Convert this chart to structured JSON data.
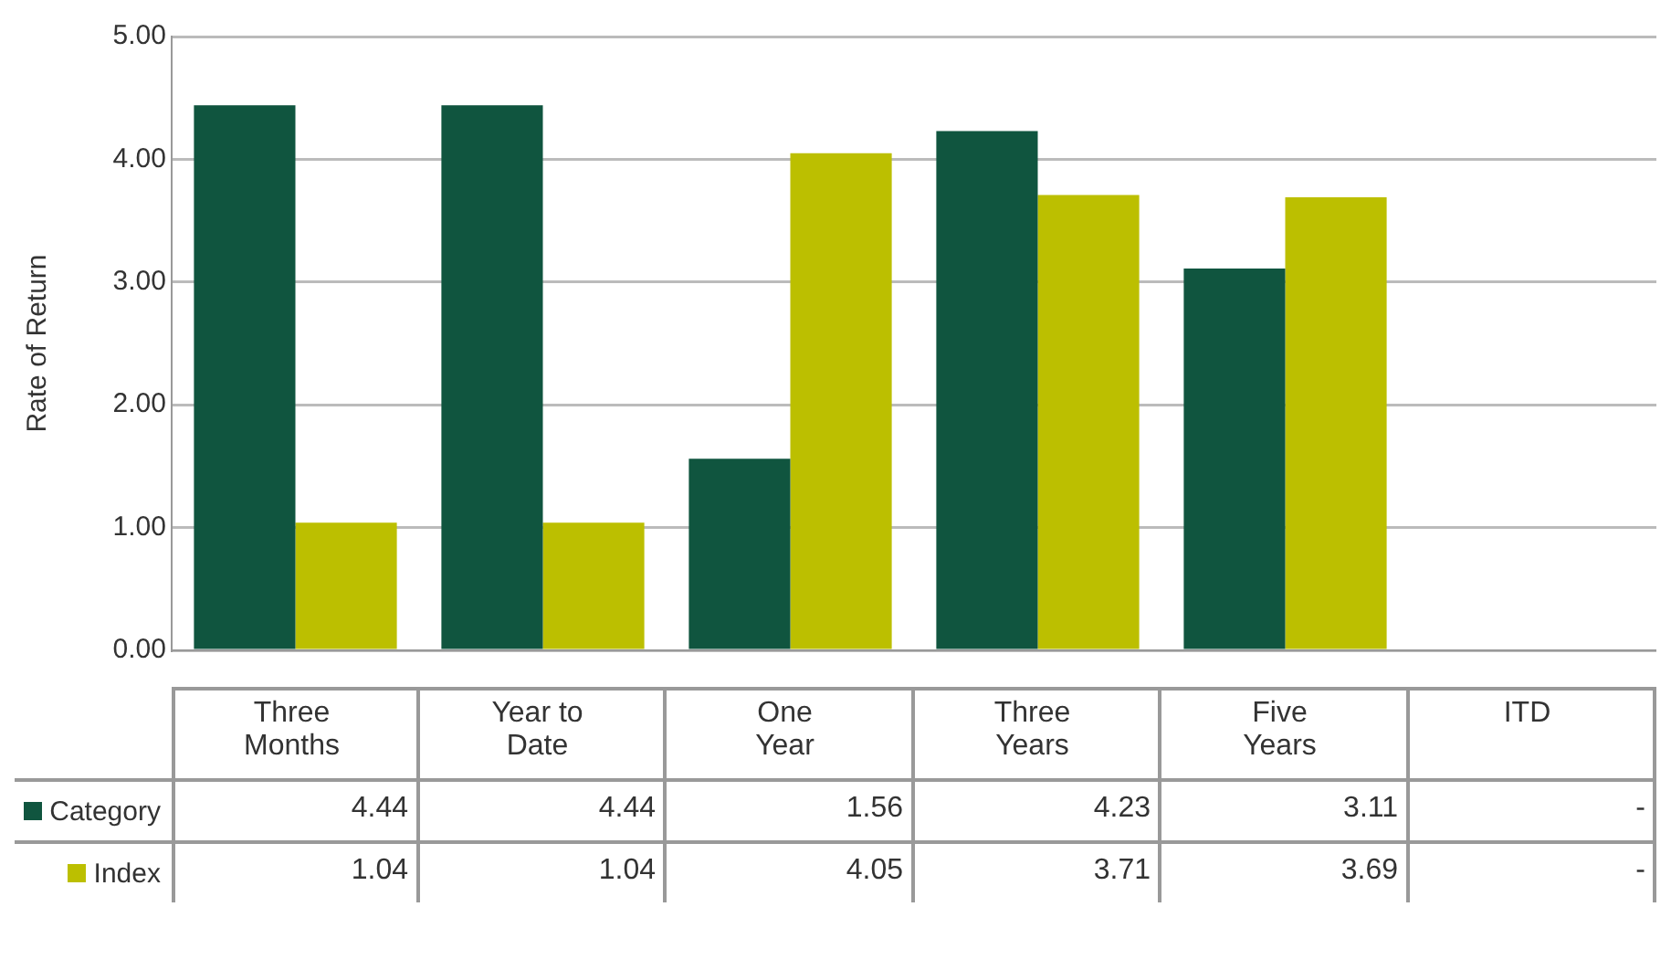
{
  "chart_data": {
    "type": "bar",
    "ylabel": "Rate of Return",
    "categories": [
      "Three Months",
      "Year to Date",
      "One Year",
      "Three Years",
      "Five Years",
      "ITD"
    ],
    "series": [
      {
        "name": "Category",
        "color": "#10553f",
        "values": [
          4.44,
          4.44,
          1.56,
          4.23,
          3.11,
          null
        ],
        "value_labels": [
          "4.44",
          "4.44",
          "1.56",
          "4.23",
          "3.11",
          "-"
        ]
      },
      {
        "name": "Index",
        "color": "#bcbf00",
        "values": [
          1.04,
          1.04,
          4.05,
          3.71,
          3.69,
          null
        ],
        "value_labels": [
          "1.04",
          "1.04",
          "4.05",
          "3.71",
          "3.69",
          "-"
        ]
      }
    ],
    "ylim": [
      0,
      5
    ],
    "yticks": [
      {
        "value": 0,
        "label": "0.00"
      },
      {
        "value": 1,
        "label": "1.00"
      },
      {
        "value": 2,
        "label": "2.00"
      },
      {
        "value": 3,
        "label": "3.00"
      },
      {
        "value": 4,
        "label": "4.00"
      },
      {
        "value": 5,
        "label": "5.00"
      }
    ],
    "grid": "y",
    "legend": "bottom left"
  }
}
